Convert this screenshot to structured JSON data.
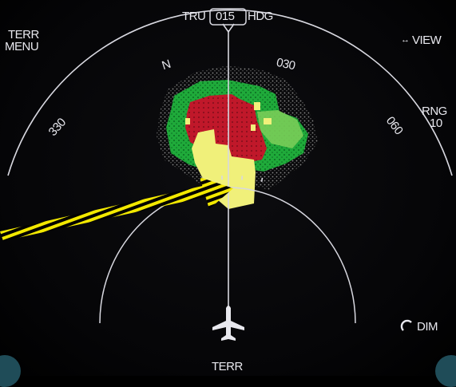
{
  "header": {
    "track_mode": "TRU",
    "heading_value": "015",
    "heading_label": "HDG"
  },
  "left_menu": {
    "line1": "TERR",
    "line2": "MENU"
  },
  "view_button": {
    "arrow": "↔",
    "label": "VIEW"
  },
  "range": {
    "label": "RNG",
    "value": "10"
  },
  "compass_labels": {
    "north": "N",
    "n030": "030",
    "n060": "060",
    "n330": "330"
  },
  "dim_control": {
    "icon": "dim-knob-icon",
    "label": "DIM"
  },
  "bottom_mode": {
    "label": "TERR"
  },
  "colors": {
    "terrain_high": "#c0182a",
    "terrain_caution": "#f0f07a",
    "terrain_green": "#1faa3a",
    "terrain_lightgreen": "#7fd05a",
    "symbology": "#e8e8ee",
    "annotation_arrow": "#f2e800"
  },
  "icons": [
    "aircraft-symbol-icon",
    "dim-knob-icon",
    "pointer-arrow-icon"
  ]
}
